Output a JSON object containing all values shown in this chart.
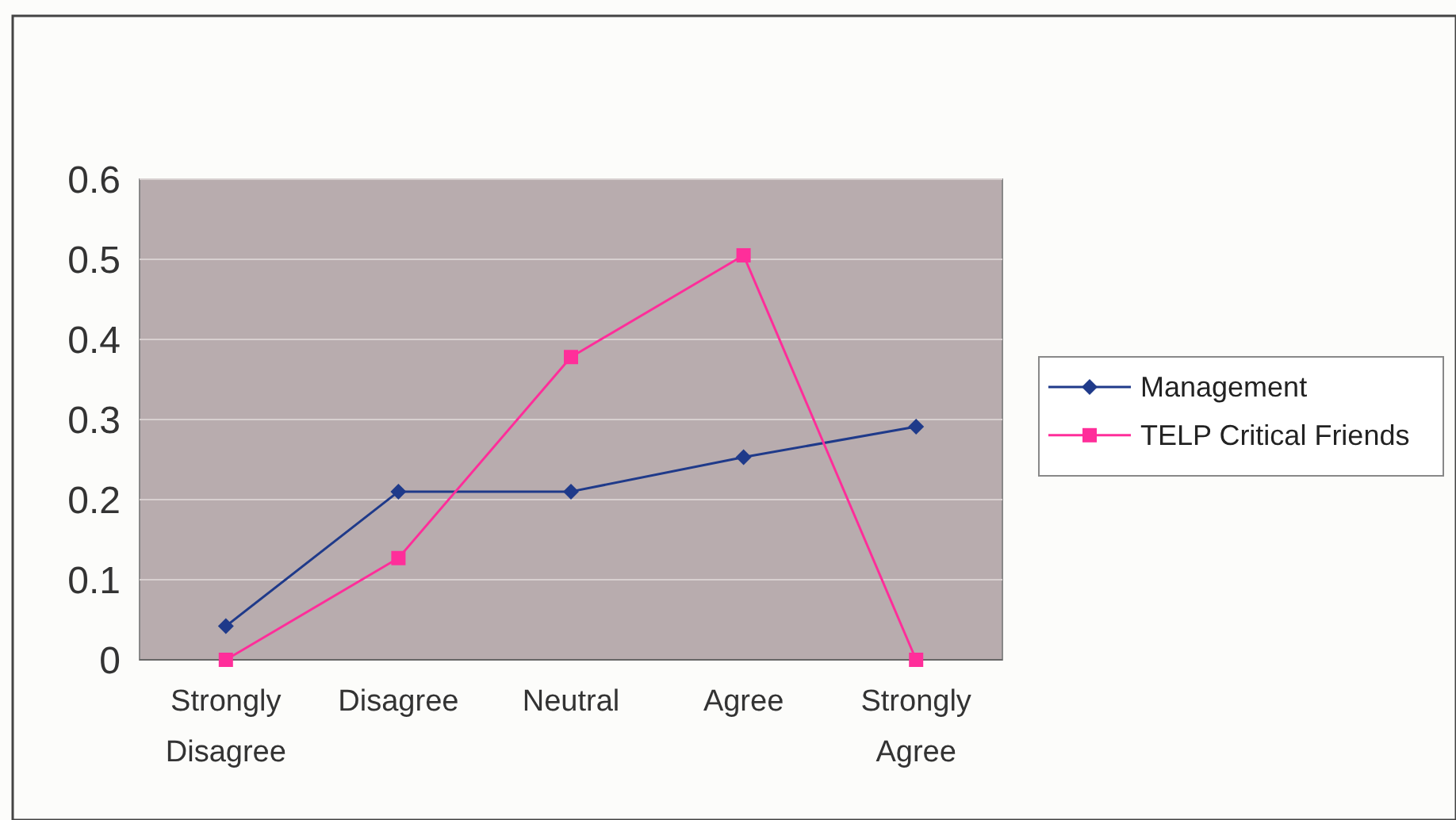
{
  "chart_data": {
    "type": "line",
    "categories": [
      "Strongly Disagree",
      "Disagree",
      "Neutral",
      "Agree",
      "Strongly Agree"
    ],
    "series": [
      {
        "name": "Management",
        "color": "#1f3a8a",
        "marker": "diamond",
        "values": [
          0.042,
          0.21,
          0.21,
          0.253,
          0.291
        ]
      },
      {
        "name": "TELP Critical Friends",
        "color": "#ff2e9a",
        "marker": "square",
        "values": [
          0,
          0.127,
          0.378,
          0.505,
          0
        ]
      }
    ],
    "ylim": [
      0,
      0.6
    ],
    "yticks": [
      0,
      0.1,
      0.2,
      0.3,
      0.4,
      0.5,
      0.6
    ],
    "grid": "y",
    "legend": "right",
    "line_style": "solid"
  }
}
